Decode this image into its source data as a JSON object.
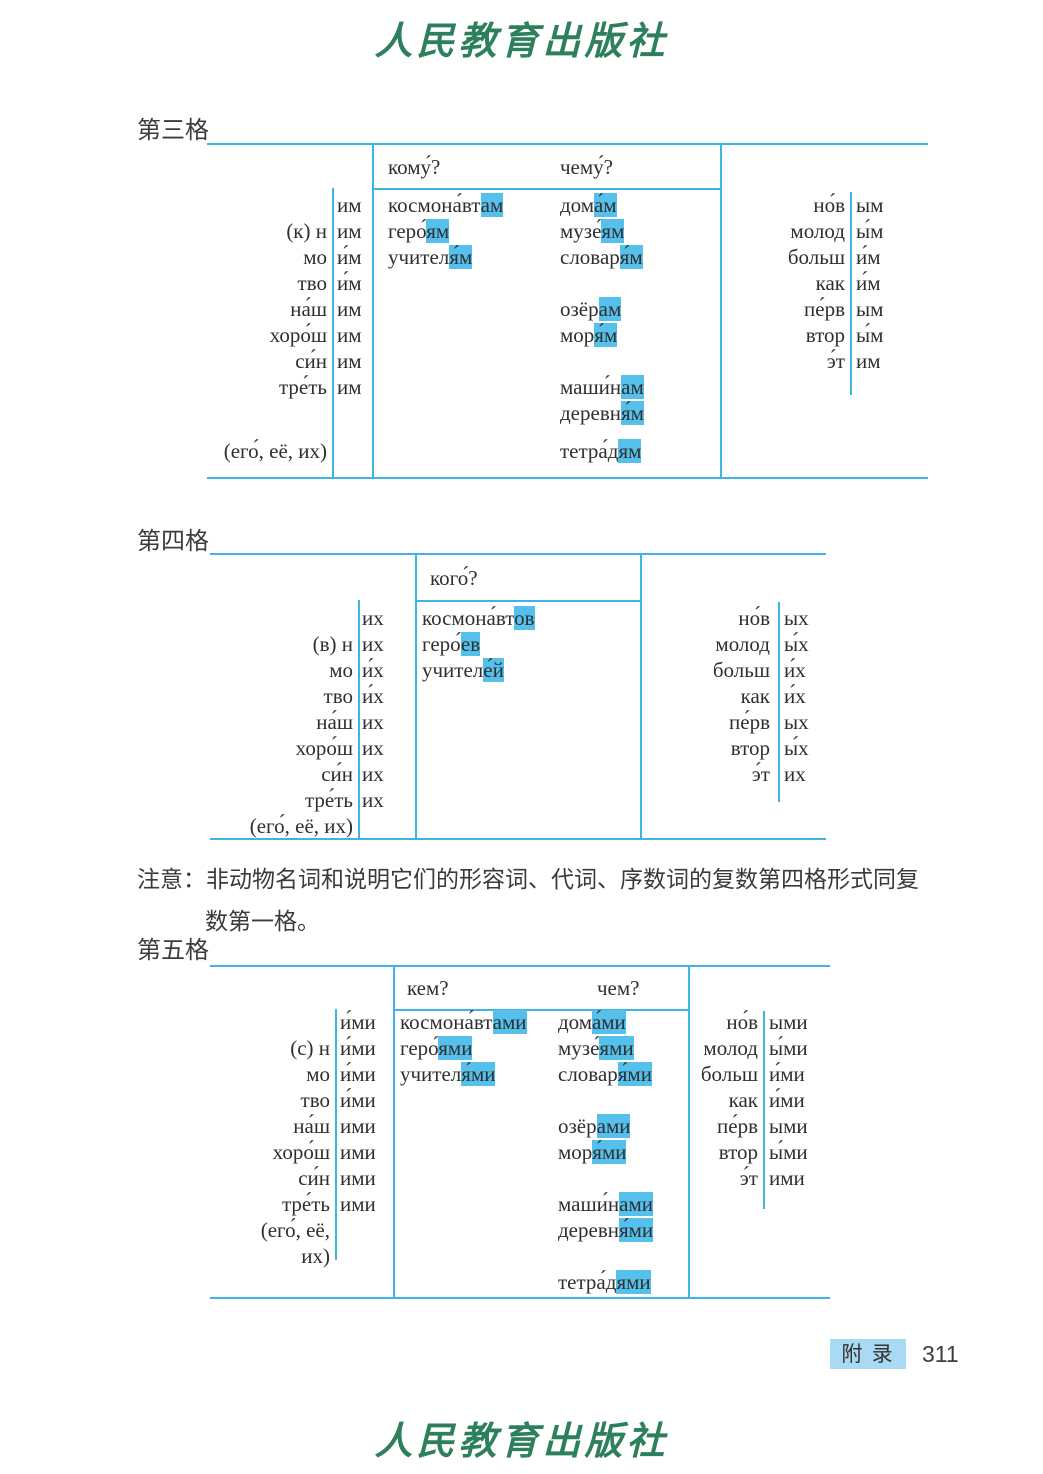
{
  "page": {
    "publisher_logo": "人民教育出版社"
  },
  "note": {
    "label": "注意：",
    "line1": "非动物名词和说明它们的形容词、代词、序数词的复数第四格形式同复",
    "line2": "数第一格。"
  },
  "footer": {
    "appendix_label": "附 录",
    "page_number": "311"
  },
  "colors": {
    "table_line": "#3fb4e3",
    "ending_highlight": "#55c0ec",
    "logo_green": "#2e7f5c",
    "appendix_badge_bg": "#a9daf3"
  },
  "tables": {
    "dative": {
      "heading": "第三格",
      "questions": [
        "кому́?",
        "чему́?"
      ],
      "stems": [
        "",
        "(к) н",
        "мо",
        "тво",
        "на́ш",
        "хоро́ш",
        "си́н",
        "тре́ть",
        "",
        "(его́, её, их)"
      ],
      "endings": [
        "им",
        "им",
        "и́м",
        "и́м",
        "им",
        "им",
        "им",
        "им",
        "",
        ""
      ],
      "nouns1": [
        "космона́вт[ам]",
        "геро́[ям]",
        "учител[я́м]",
        "",
        "",
        "",
        "",
        "",
        "",
        ""
      ],
      "nouns2": [
        "дом[а́м]",
        "музе́[ям]",
        "словар[я́м]",
        "",
        "озёр[ам]",
        "мор[я́м]",
        "",
        "маши́н[ам]",
        "деревн[я́м]",
        "тетра́д[ям]"
      ],
      "adj_stems": [
        "но́в",
        "молод",
        "больш",
        "как",
        "пе́рв",
        "втор",
        "э́т",
        "",
        "",
        ""
      ],
      "adj_endings": [
        "ым",
        "ы́м",
        "и́м",
        "и́м",
        "ым",
        "ы́м",
        "им",
        "",
        "",
        ""
      ]
    },
    "accusative": {
      "heading": "第四格",
      "questions": [
        "кого́?"
      ],
      "stems": [
        "",
        "(в) н",
        "мо",
        "тво",
        "на́ш",
        "хоро́ш",
        "си́н",
        "тре́ть",
        "(его́, её, их)"
      ],
      "endings": [
        "их",
        "их",
        "и́х",
        "и́х",
        "их",
        "их",
        "их",
        "их",
        ""
      ],
      "nouns1": [
        "космона́вт[ов]",
        "геро́[ев]",
        "учител[е́й]",
        "",
        "",
        "",
        "",
        "",
        ""
      ],
      "adj_stems": [
        "но́в",
        "молод",
        "больш",
        "как",
        "пе́рв",
        "втор",
        "э́т",
        "",
        ""
      ],
      "adj_endings": [
        "ых",
        "ы́х",
        "и́х",
        "и́х",
        "ых",
        "ы́х",
        "их",
        "",
        ""
      ]
    },
    "instrumental": {
      "heading": "第五格",
      "questions": [
        "кем?",
        "чем?"
      ],
      "stems": [
        "",
        "(с) н",
        "мо",
        "тво",
        "на́ш",
        "хоро́ш",
        "си́н",
        "тре́ть",
        "(его́, её,",
        "их)",
        ""
      ],
      "endings": [
        "и́ми",
        "и́ми",
        "и́ми",
        "и́ми",
        "ими",
        "ими",
        "ими",
        "ими",
        "",
        "",
        ""
      ],
      "nouns1": [
        "космона́вт[ами]",
        "геро́[ями]",
        "учител[я́ми]",
        "",
        "",
        "",
        "",
        "",
        "",
        "",
        ""
      ],
      "nouns2": [
        "дом[а́ми]",
        "музе́[ями]",
        "словар[я́ми]",
        "",
        "озёр[ами]",
        "мор[я́ми]",
        "",
        "маши́н[ами]",
        "деревн[я́ми]",
        "",
        "тетра́д[ями]"
      ],
      "adj_stems": [
        "но́в",
        "молод",
        "больш",
        "как",
        "пе́рв",
        "втор",
        "э́т",
        "",
        "",
        "",
        ""
      ],
      "adj_endings": [
        "ыми",
        "ы́ми",
        "и́ми",
        "и́ми",
        "ыми",
        "ы́ми",
        "ими",
        "",
        "",
        "",
        ""
      ]
    }
  }
}
